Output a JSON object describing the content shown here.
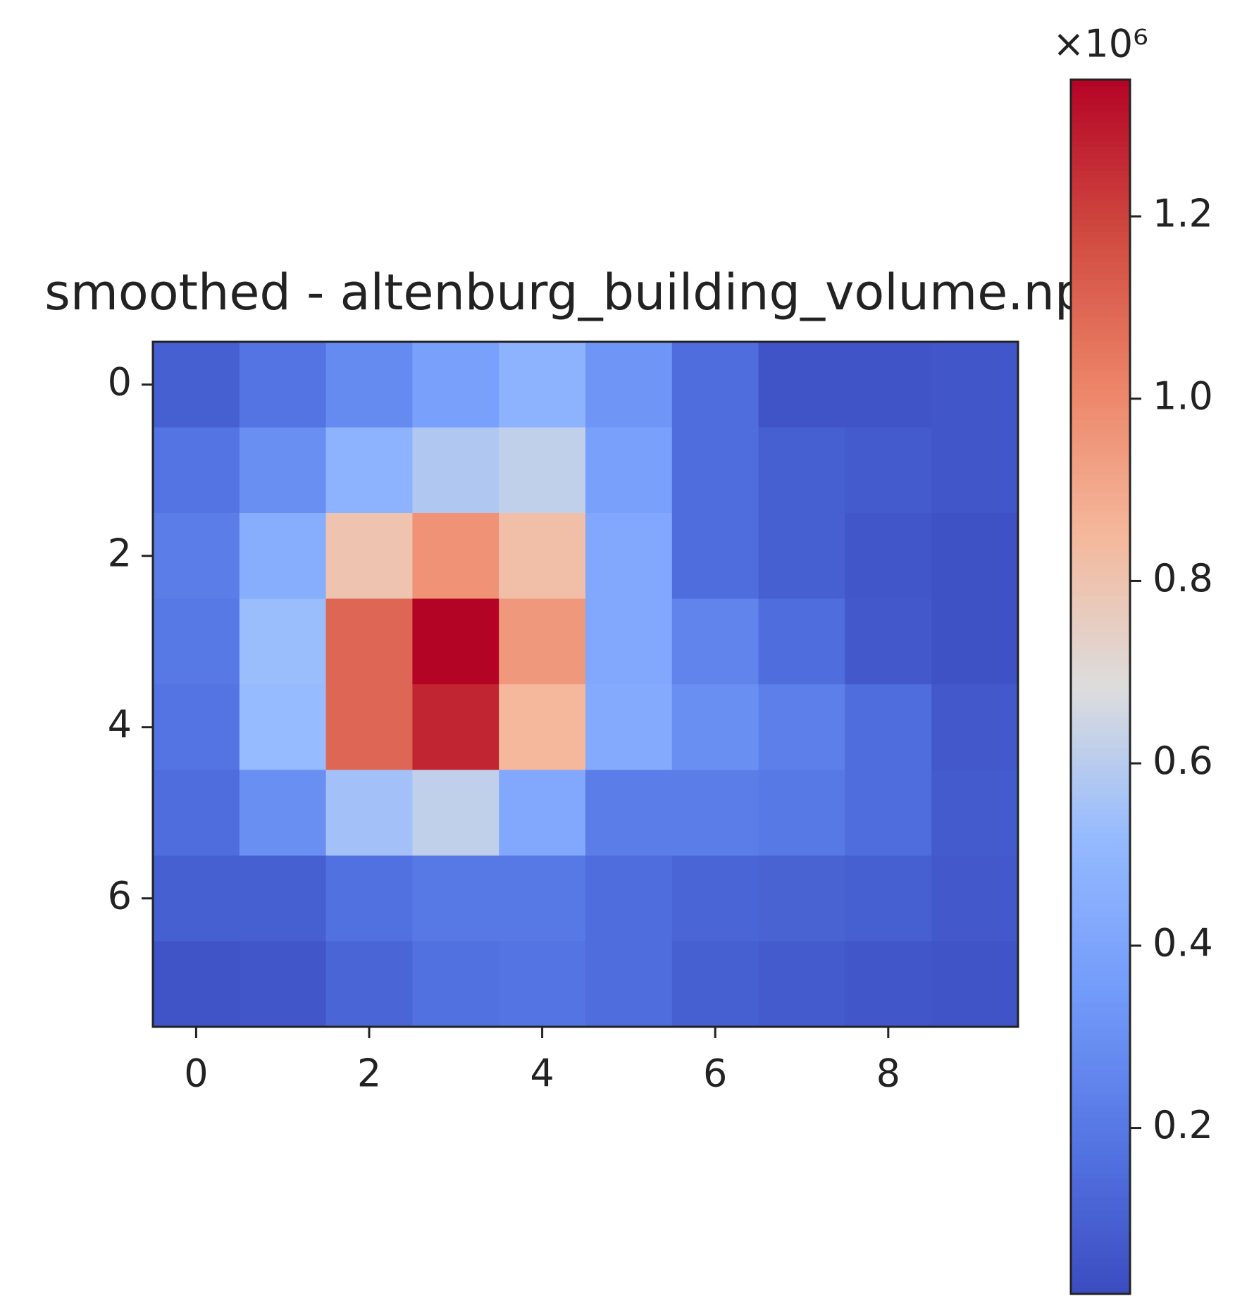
{
  "chart_data": {
    "type": "heatmap",
    "title": "smoothed - altenburg_building_volume.npy",
    "colormap": "coolwarm",
    "z": [
      [
        0.1,
        0.18,
        0.28,
        0.38,
        0.48,
        0.33,
        0.15,
        0.05,
        0.05,
        0.06
      ],
      [
        0.18,
        0.3,
        0.48,
        0.58,
        0.62,
        0.38,
        0.15,
        0.1,
        0.08,
        0.06
      ],
      [
        0.22,
        0.45,
        0.8,
        0.97,
        0.82,
        0.42,
        0.15,
        0.1,
        0.06,
        0.04
      ],
      [
        0.2,
        0.53,
        1.1,
        1.35,
        0.95,
        0.42,
        0.25,
        0.15,
        0.07,
        0.04
      ],
      [
        0.18,
        0.52,
        1.1,
        1.27,
        0.85,
        0.43,
        0.3,
        0.23,
        0.15,
        0.07
      ],
      [
        0.15,
        0.3,
        0.55,
        0.62,
        0.42,
        0.22,
        0.22,
        0.2,
        0.15,
        0.08
      ],
      [
        0.1,
        0.1,
        0.17,
        0.2,
        0.2,
        0.15,
        0.12,
        0.11,
        0.1,
        0.07
      ],
      [
        0.05,
        0.06,
        0.12,
        0.17,
        0.18,
        0.15,
        0.1,
        0.08,
        0.06,
        0.05
      ]
    ],
    "xlim": [
      -0.5,
      9.5
    ],
    "ylim": [
      7.5,
      -0.5
    ],
    "xticks": [
      0,
      2,
      4,
      6,
      8
    ],
    "yticks": [
      0,
      2,
      4,
      6
    ],
    "clim": [
      0.018,
      1.35
    ],
    "cticks": [
      0.2,
      0.4,
      0.6,
      0.8,
      {
        "value": 1,
        "label": "1.0"
      },
      1.2
    ],
    "c_offset_label": "×10⁶"
  }
}
